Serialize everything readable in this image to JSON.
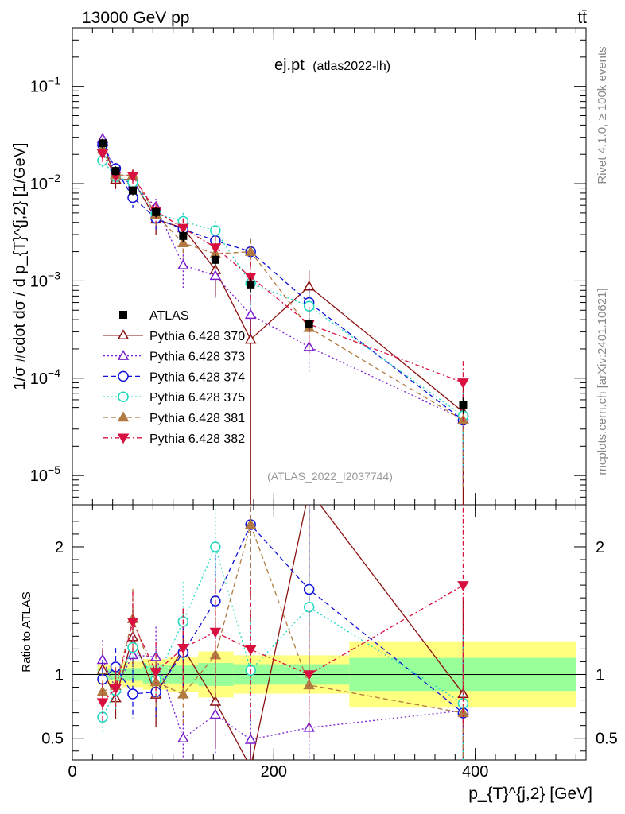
{
  "header": {
    "energy_label": "13000 GeV pp",
    "process_label": "tt̄"
  },
  "side_labels": {
    "rivet": "Rivet 4.1.0, ≥ 100k events",
    "source": "mcplots.cern.ch [arXiv:2401.10621]"
  },
  "chart_data": {
    "type": "scatter",
    "title": "ej.pt",
    "subtitle": "(atlas2022-lh)",
    "watermark": "(ATLAS_2022_I2037744)",
    "xlabel": "p_{T}^{j,2} [GeV]",
    "ylabel": "1/σ #cdot dσ / d p_{T}^{j,2} [1/GeV]",
    "ratio_ylabel": "Ratio to ATLAS",
    "xlim": [
      0,
      510
    ],
    "ylim": [
      5e-06,
      0.4
    ],
    "ratio_ylim": [
      0.33,
      2.33
    ],
    "x_ticks": [
      0,
      200,
      400
    ],
    "y_ticks": [
      {
        "value": 0.1,
        "label": "10",
        "exp": "−1"
      },
      {
        "value": 0.01,
        "label": "10",
        "exp": "−2"
      },
      {
        "value": 0.001,
        "label": "10",
        "exp": "−3"
      },
      {
        "value": 0.0001,
        "label": "10",
        "exp": "−4"
      },
      {
        "value": 1e-05,
        "label": "10",
        "exp": "−5"
      }
    ],
    "ratio_ticks": [
      0.5,
      1,
      2
    ],
    "legend_position": "middle-left",
    "bins": [
      [
        25,
        35
      ],
      [
        35,
        50
      ],
      [
        50,
        70
      ],
      [
        70,
        95
      ],
      [
        95,
        125
      ],
      [
        125,
        160
      ],
      [
        160,
        195
      ],
      [
        195,
        275
      ],
      [
        275,
        500
      ]
    ],
    "x": [
      30,
      43,
      60,
      83,
      110,
      142,
      177,
      235,
      388
    ],
    "data": {
      "name": "ATLAS",
      "values": [
        0.026,
        0.0135,
        0.0085,
        0.0051,
        0.0029,
        0.00165,
        0.00092,
        0.00036,
        5.3e-05
      ],
      "errors": [
        0.003,
        0.0016,
        0.0009,
        0.0006,
        0.0004,
        0.00022,
        0.00015,
        6e-05,
        1e-05
      ],
      "band_inner": [
        0.04,
        0.04,
        0.05,
        0.07,
        0.07,
        0.09,
        0.08,
        0.08,
        0.13
      ],
      "band_outer": [
        0.08,
        0.08,
        0.1,
        0.12,
        0.14,
        0.18,
        0.15,
        0.15,
        0.26
      ]
    },
    "series": [
      {
        "name": "Pythia 6.428 370",
        "color": "#8b1010",
        "marker": "triangle-up-open",
        "dash": "",
        "x": [
          30,
          43,
          60,
          83,
          110,
          142,
          177,
          235,
          388
        ],
        "values": [
          0.027,
          0.011,
          0.011,
          0.0043,
          0.0035,
          0.0013,
          0.00025,
          0.00088,
          4.5e-05
        ],
        "errors": [
          0.004,
          0.0022,
          0.002,
          0.0013,
          0.0009,
          0.0006,
          0.00025,
          0.0004,
          4e-05
        ]
      },
      {
        "name": "Pythia 6.428 373",
        "color": "#7b1fd0",
        "marker": "triangle-up-open",
        "dash": "2,3",
        "x": [
          30,
          43,
          60,
          83,
          110,
          142,
          177,
          235,
          388
        ],
        "values": [
          0.029,
          0.012,
          0.0098,
          0.0058,
          0.00145,
          0.00113,
          0.00045,
          0.00021,
          3.8e-05
        ],
        "errors": [
          0.004,
          0.002,
          0.0018,
          0.0012,
          0.0006,
          0.0005,
          0.0002,
          0.0001,
          3e-05
        ]
      },
      {
        "name": "Pythia 6.428 374",
        "color": "#1010d8",
        "marker": "circle-open",
        "dash": "6,4",
        "x": [
          30,
          43,
          60,
          83,
          110,
          142,
          177,
          235,
          388
        ],
        "values": [
          0.025,
          0.0143,
          0.0072,
          0.0044,
          0.0034,
          0.0026,
          0.002,
          0.0006,
          3.7e-05
        ],
        "errors": [
          0.004,
          0.002,
          0.0016,
          0.001,
          0.0008,
          0.0007,
          0.0007,
          0.00025,
          3e-05
        ]
      },
      {
        "name": "Pythia 6.428 375",
        "color": "#20d8c0",
        "marker": "circle-open",
        "dash": "2,3",
        "x": [
          30,
          43,
          60,
          83,
          110,
          142,
          177,
          235,
          388
        ],
        "values": [
          0.0173,
          0.0118,
          0.0103,
          0.0049,
          0.0041,
          0.0033,
          0.00095,
          0.00055,
          4.1e-05
        ],
        "errors": [
          0.003,
          0.002,
          0.0018,
          0.0011,
          0.0009,
          0.0008,
          0.0004,
          0.0002,
          3e-05
        ]
      },
      {
        "name": "Pythia 6.428 381",
        "color": "#b07a40",
        "marker": "triangle-up-filled",
        "dash": "6,4",
        "x": [
          30,
          43,
          60,
          83,
          110,
          142,
          177,
          235,
          388
        ],
        "values": [
          0.0225,
          0.0123,
          0.0122,
          0.0048,
          0.00245,
          0.0019,
          0.002,
          0.00033,
          3.7e-05
        ],
        "errors": [
          0.004,
          0.002,
          0.002,
          0.0011,
          0.0007,
          0.0006,
          0.0007,
          0.00015,
          3e-05
        ]
      },
      {
        "name": "Pythia 6.428 382",
        "color": "#d81040",
        "marker": "triangle-down-filled",
        "dash": "6,3,2,3",
        "x": [
          30,
          43,
          60,
          83,
          110,
          142,
          177,
          235,
          388
        ],
        "values": [
          0.0203,
          0.012,
          0.012,
          0.0052,
          0.0035,
          0.0022,
          0.0011,
          0.00036,
          9e-05
        ],
        "errors": [
          0.004,
          0.002,
          0.002,
          0.0012,
          0.0009,
          0.0007,
          0.0005,
          0.00018,
          6e-05
        ]
      }
    ]
  }
}
